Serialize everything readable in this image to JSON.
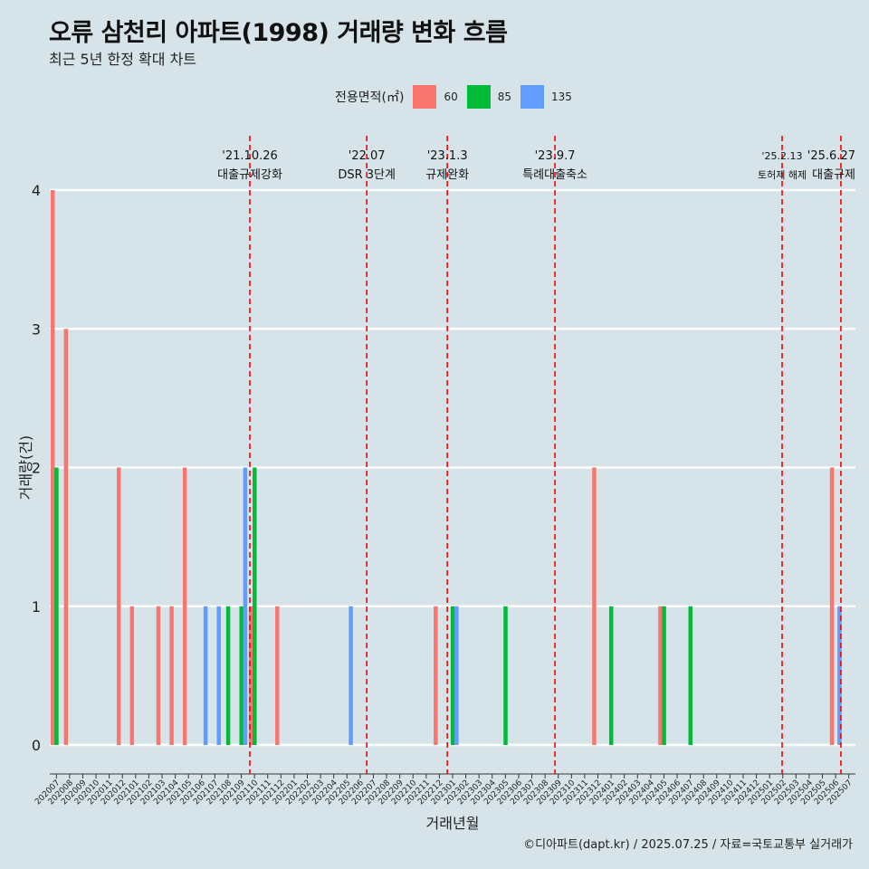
{
  "header": {
    "title": "오류 삼천리 아파트(1998) 거래량 변화 흐름",
    "subtitle": "최근 5년 한정 확대 차트"
  },
  "legend": {
    "title": "전용면적(㎡)",
    "items": [
      {
        "label": "60",
        "color": "#f8766d"
      },
      {
        "label": "85",
        "color": "#00ba38"
      },
      {
        "label": "135",
        "color": "#619cff"
      }
    ]
  },
  "caption": "©디아파트(dapt.kr) / 2025.07.25 / 자료=국토교통부 실거래가",
  "chart_data": {
    "type": "bar",
    "xlabel": "거래년월",
    "ylabel": "거래량(건)",
    "ylim": [
      0,
      4
    ],
    "yticks": [
      0,
      1,
      2,
      3,
      4
    ],
    "grid": true,
    "legend_position": "top",
    "categories": [
      "202007",
      "202008",
      "202009",
      "202010",
      "202011",
      "202012",
      "202101",
      "202102",
      "202103",
      "202104",
      "202105",
      "202106",
      "202107",
      "202108",
      "202109",
      "202110",
      "202111",
      "202112",
      "202201",
      "202202",
      "202203",
      "202204",
      "202205",
      "202206",
      "202207",
      "202208",
      "202209",
      "202210",
      "202211",
      "202212",
      "202301",
      "202302",
      "202303",
      "202304",
      "202305",
      "202306",
      "202307",
      "202308",
      "202309",
      "202310",
      "202311",
      "202312",
      "202401",
      "202402",
      "202403",
      "202404",
      "202405",
      "202406",
      "202407",
      "202408",
      "202409",
      "202410",
      "202411",
      "202412",
      "202501",
      "202502",
      "202503",
      "202504",
      "202505",
      "202506",
      "202507"
    ],
    "series": [
      {
        "name": "60",
        "color": "#f8766d",
        "values": [
          4,
          3,
          0,
          0,
          0,
          2,
          1,
          0,
          1,
          1,
          2,
          0,
          0,
          0,
          0,
          1,
          0,
          1,
          0,
          0,
          0,
          0,
          0,
          0,
          0,
          0,
          0,
          0,
          0,
          1,
          0,
          0,
          0,
          0,
          0,
          0,
          0,
          0,
          0,
          0,
          0,
          2,
          0,
          0,
          0,
          0,
          1,
          0,
          0,
          0,
          0,
          0,
          0,
          0,
          0,
          0,
          0,
          0,
          0,
          2,
          0
        ]
      },
      {
        "name": "85",
        "color": "#00ba38",
        "values": [
          2,
          0,
          0,
          0,
          0,
          0,
          0,
          0,
          0,
          0,
          0,
          0,
          0,
          1,
          1,
          2,
          0,
          0,
          0,
          0,
          0,
          0,
          0,
          0,
          0,
          0,
          0,
          0,
          0,
          0,
          1,
          0,
          0,
          0,
          1,
          0,
          0,
          0,
          0,
          0,
          0,
          0,
          1,
          0,
          0,
          0,
          1,
          0,
          1,
          0,
          0,
          0,
          0,
          0,
          0,
          0,
          0,
          0,
          0,
          0,
          0
        ]
      },
      {
        "name": "135",
        "color": "#619cff",
        "values": [
          0,
          0,
          0,
          0,
          0,
          0,
          0,
          0,
          0,
          0,
          0,
          1,
          1,
          0,
          2,
          0,
          0,
          0,
          0,
          0,
          0,
          0,
          1,
          0,
          0,
          0,
          0,
          0,
          0,
          0,
          1,
          0,
          0,
          0,
          0,
          0,
          0,
          0,
          0,
          0,
          0,
          0,
          0,
          0,
          0,
          0,
          0,
          0,
          0,
          0,
          0,
          0,
          0,
          0,
          0,
          0,
          0,
          0,
          0,
          1,
          0
        ]
      }
    ],
    "annotations": [
      {
        "x": "202110",
        "offset": 0.15,
        "date": "'21.10.26",
        "label": "대출규제강화"
      },
      {
        "x": "202207",
        "offset": 0.0,
        "date": "'22.07",
        "label": "DSR 3단계"
      },
      {
        "x": "202301",
        "offset": 0.1,
        "date": "'23.1.3",
        "label": "규제완화"
      },
      {
        "x": "202309",
        "offset": 0.25,
        "date": "'23.9.7",
        "label": "특례대출축소"
      },
      {
        "x": "202502",
        "offset": 0.45,
        "date": "'25.2.13",
        "label": "토허제 해제"
      },
      {
        "x": "202506",
        "offset": 0.9,
        "date": "'25.6.27",
        "label": "대출규제"
      }
    ]
  }
}
